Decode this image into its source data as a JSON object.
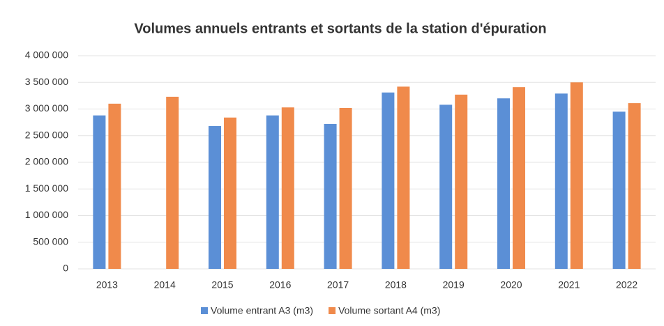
{
  "chart_data": {
    "type": "bar",
    "title": "Volumes annuels entrants et sortants de la station d'épuration",
    "categories": [
      "2013",
      "2014",
      "2015",
      "2016",
      "2017",
      "2018",
      "2019",
      "2020",
      "2021",
      "2022"
    ],
    "series": [
      {
        "name": "Volume entrant A3 (m3)",
        "color": "#5b8fd6",
        "values": [
          2880000,
          null,
          2680000,
          2880000,
          2720000,
          3310000,
          3080000,
          3200000,
          3290000,
          2950000
        ]
      },
      {
        "name": "Volume sortant A4 (m3)",
        "color": "#f08a4b",
        "values": [
          3100000,
          3230000,
          2840000,
          3030000,
          3020000,
          3420000,
          3270000,
          3410000,
          3500000,
          3110000
        ]
      }
    ],
    "ylim": [
      0,
      4000000
    ],
    "yticks": [
      0,
      {
        "value": 500000,
        "label": "500 000"
      },
      {
        "value": 1000000,
        "label": "1 000 000"
      },
      {
        "value": 1500000,
        "label": "1 500 000"
      },
      {
        "value": 2000000,
        "label": "2 000 000"
      },
      {
        "value": 2500000,
        "label": "2 500 000"
      },
      {
        "value": 3000000,
        "label": "3 000 000"
      },
      {
        "value": 3500000,
        "label": "3 500 000"
      },
      {
        "value": 4000000,
        "label": "4 000 000"
      }
    ],
    "grid": true,
    "legend": "bottom"
  }
}
